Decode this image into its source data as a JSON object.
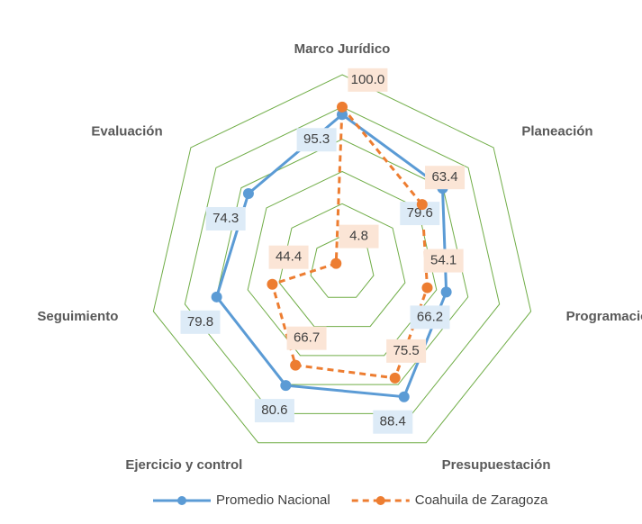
{
  "chart_data": {
    "type": "radar",
    "categories": [
      "Marco Jurídico",
      "Planeación",
      "Programación",
      "Presupuestación",
      "Ejercicio y control",
      "Seguimiento",
      "Evaluación"
    ],
    "series": [
      {
        "name": "Promedio Nacional",
        "color": "#5b9bd5",
        "dash": false,
        "label_bg": "#ddebf7",
        "values": [
          95.3,
          79.6,
          66.2,
          88.4,
          80.6,
          79.8,
          74.3
        ]
      },
      {
        "name": "Coahuila de Zaragoza",
        "color": "#ed7d31",
        "dash": true,
        "label_bg": "#fbe5d6",
        "values": [
          100.0,
          63.4,
          54.1,
          75.5,
          66.7,
          44.4,
          4.8
        ],
        "value_labels": [
          "100.0",
          "63.4",
          "54.1",
          "75.5",
          "66.7",
          "44.4",
          "4.8"
        ]
      }
    ],
    "ylim": [
      0,
      120
    ],
    "yticks": [
      20,
      40,
      60,
      80,
      100,
      120
    ],
    "grid": true,
    "grid_color": "#70ad47",
    "legend": "bottom"
  }
}
